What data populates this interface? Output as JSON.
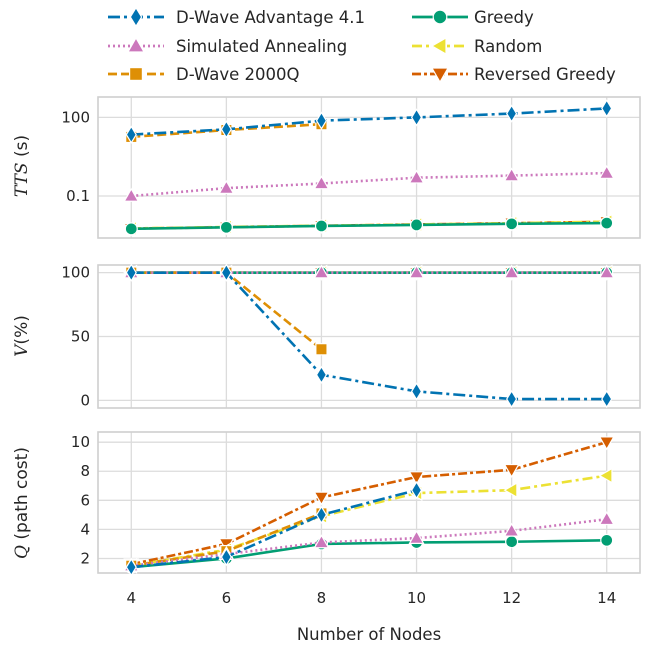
{
  "chart_data": [
    {
      "type": "line",
      "panel": "tts",
      "x": [
        4,
        6,
        8,
        10,
        12,
        14
      ],
      "xlabel": "",
      "ylabel": "TTS",
      "ylabel_unit": " (s)",
      "yscale": "log",
      "ylim": [
        0.0025,
        600
      ],
      "yticks": [
        100,
        0.1
      ],
      "ytick_labels": [
        "100",
        "0.1"
      ],
      "xticks": [
        4,
        6,
        8,
        10,
        12,
        14
      ],
      "xtick_labels": [
        "",
        "",
        "",
        "",
        "",
        ""
      ],
      "grid": true,
      "series": [
        {
          "name": "D-Wave Advantage 4.1",
          "values": [
            22,
            35,
            75,
            100,
            140,
            220
          ]
        },
        {
          "name": "Simulated Annealing",
          "values": [
            0.1,
            0.2,
            0.3,
            0.5,
            0.6,
            0.75
          ]
        },
        {
          "name": "D-Wave 2000Q",
          "values": [
            18,
            33,
            55,
            null,
            null,
            null
          ]
        },
        {
          "name": "Greedy",
          "values": [
            0.0056,
            0.0064,
            0.0072,
            0.0079,
            0.0087,
            0.0093
          ]
        },
        {
          "name": "Random",
          "values": [
            0.0058,
            0.0066,
            0.0074,
            0.0082,
            0.0092,
            0.0105
          ]
        },
        {
          "name": "Reversed Greedy",
          "values": [
            0.0057,
            0.0065,
            0.0073,
            0.0082,
            0.0092,
            0.0103
          ]
        }
      ]
    },
    {
      "type": "line",
      "panel": "validity",
      "x": [
        4,
        6,
        8,
        10,
        12,
        14
      ],
      "xlabel": "",
      "ylabel": "V",
      "ylabel_unit": "(%)",
      "ylim": [
        -6,
        106
      ],
      "yticks": [
        100,
        50,
        0
      ],
      "ytick_labels": [
        "100",
        "50",
        "0"
      ],
      "xticks": [
        4,
        6,
        8,
        10,
        12,
        14
      ],
      "xtick_labels": [
        "",
        "",
        "",
        "",
        "",
        ""
      ],
      "grid": true,
      "series": [
        {
          "name": "D-Wave Advantage 4.1",
          "values": [
            100,
            100,
            20,
            7,
            1,
            1
          ]
        },
        {
          "name": "Simulated Annealing",
          "values": [
            100,
            100,
            100,
            100,
            100,
            100
          ]
        },
        {
          "name": "D-Wave 2000Q",
          "values": [
            100,
            100,
            40,
            null,
            null,
            null
          ]
        },
        {
          "name": "Greedy",
          "values": [
            100,
            100,
            100,
            100,
            100,
            100
          ]
        },
        {
          "name": "Random",
          "values": [
            100,
            100,
            100,
            100,
            100,
            100
          ]
        },
        {
          "name": "Reversed Greedy",
          "values": [
            100,
            100,
            100,
            100,
            100,
            100
          ]
        }
      ]
    },
    {
      "type": "line",
      "panel": "cost",
      "x": [
        4,
        6,
        8,
        10,
        12,
        14
      ],
      "xlabel": "Number of Nodes",
      "ylabel": "Q",
      "ylabel_unit": " (path cost)",
      "ylim": [
        1.0,
        10.7
      ],
      "yticks": [
        10,
        8,
        6,
        4,
        2
      ],
      "ytick_labels": [
        "10",
        "8",
        "6",
        "4",
        "2"
      ],
      "xticks": [
        4,
        6,
        8,
        10,
        12,
        14
      ],
      "xtick_labels": [
        "4",
        "6",
        "8",
        "10",
        "12",
        "14"
      ],
      "grid": true,
      "series": [
        {
          "name": "D-Wave Advantage 4.1",
          "values": [
            1.4,
            2.1,
            5.0,
            6.7,
            null,
            null
          ]
        },
        {
          "name": "Simulated Annealing",
          "values": [
            1.5,
            2.3,
            3.1,
            3.4,
            3.9,
            4.7
          ]
        },
        {
          "name": "D-Wave 2000Q",
          "values": [
            1.5,
            2.5,
            5.1,
            null,
            null,
            null
          ]
        },
        {
          "name": "Greedy",
          "values": [
            1.4,
            2.0,
            3.0,
            3.1,
            3.15,
            3.25
          ]
        },
        {
          "name": "Random",
          "values": [
            1.5,
            2.6,
            4.9,
            6.5,
            6.7,
            7.7
          ]
        },
        {
          "name": "Reversed Greedy",
          "values": [
            1.6,
            3.0,
            6.2,
            7.6,
            8.1,
            10.0
          ]
        }
      ]
    }
  ],
  "legend": {
    "placement": "top",
    "entries": [
      {
        "label": "D-Wave Advantage 4.1",
        "color": "#0173b2",
        "marker": "diamond",
        "dash": "12,4,3,4"
      },
      {
        "label": "Greedy",
        "color": "#029e73",
        "marker": "circle",
        "dash": ""
      },
      {
        "label": "Simulated Annealing",
        "color": "#cc78bc",
        "marker": "triangle-up",
        "dash": "2,3"
      },
      {
        "label": "Random",
        "color": "#ece133",
        "marker": "triangle-left",
        "dash": "10,4,3,4"
      },
      {
        "label": "D-Wave 2000Q",
        "color": "#de8f05",
        "marker": "square",
        "dash": "9,4"
      },
      {
        "label": "Reversed Greedy",
        "color": "#d55e00",
        "marker": "triangle-down",
        "dash": "9,3,3,3"
      }
    ]
  }
}
